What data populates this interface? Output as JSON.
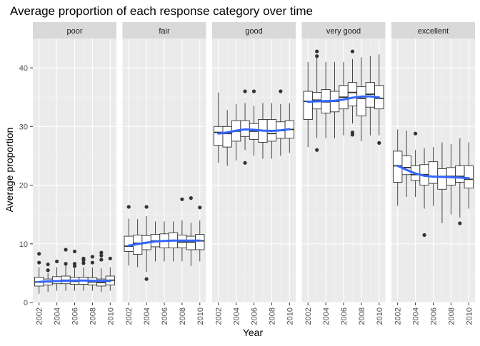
{
  "chart_data": {
    "type": "box",
    "title": "Average proportion of each response category over time",
    "xlabel": "Year",
    "ylabel": "Average proportion",
    "ylim": [
      0,
      45
    ],
    "yticks": [
      0,
      10,
      20,
      30,
      40
    ],
    "xlim": [
      2001.3,
      2010.7
    ],
    "xticks": [
      2002,
      2004,
      2006,
      2008,
      2010
    ],
    "grid": true,
    "colors": {
      "panel_bg": "#ebebeb",
      "strip_bg": "#d9d9d9",
      "grid_major": "#ffffff",
      "grid_minor": "#f4f4f4",
      "smooth": "#3366ff",
      "box_fill": "#ffffff",
      "outline": "#333333"
    },
    "facets": [
      {
        "label": "poor",
        "smooth": [
          3.5,
          3.6,
          3.65,
          3.7,
          3.75,
          3.75,
          3.7,
          3.7,
          3.65
        ],
        "boxes": [
          {
            "x": 2002,
            "stats": [
              1.5,
              2.8,
              3.5,
              4.3,
              6.0
            ],
            "outliers": [
              8.3,
              6.8
            ]
          },
          {
            "x": 2003,
            "stats": [
              1.8,
              3.0,
              3.5,
              4.0,
              5.0
            ],
            "outliers": [
              6.5,
              5.5
            ]
          },
          {
            "x": 2004,
            "stats": [
              2.0,
              3.2,
              3.7,
              4.4,
              6.0
            ],
            "outliers": [
              7.0
            ]
          },
          {
            "x": 2005,
            "stats": [
              2.0,
              3.2,
              3.8,
              4.5,
              6.3
            ],
            "outliers": [
              9.0,
              6.6
            ]
          },
          {
            "x": 2006,
            "stats": [
              2.0,
              3.1,
              3.6,
              4.3,
              5.8
            ],
            "outliers": [
              8.7,
              6.6,
              6.2
            ]
          },
          {
            "x": 2007,
            "stats": [
              2.0,
              3.1,
              3.7,
              4.3,
              6.0
            ],
            "outliers": [
              7.5,
              7.2,
              6.7
            ]
          },
          {
            "x": 2008,
            "stats": [
              2.0,
              3.0,
              3.5,
              4.2,
              6.0
            ],
            "outliers": [
              7.8,
              6.8
            ]
          },
          {
            "x": 2009,
            "stats": [
              1.8,
              2.8,
              3.4,
              4.0,
              5.8
            ],
            "outliers": [
              8.5,
              8.0,
              7.3
            ]
          },
          {
            "x": 2010,
            "stats": [
              2.0,
              3.0,
              3.8,
              4.5,
              6.0
            ],
            "outliers": [
              7.5
            ]
          }
        ]
      },
      {
        "label": "fair",
        "smooth": [
          9.7,
          9.95,
          10.2,
          10.4,
          10.5,
          10.55,
          10.55,
          10.55,
          10.55
        ],
        "boxes": [
          {
            "x": 2002,
            "stats": [
              6.3,
              8.7,
              9.6,
              11.3,
              14.3
            ],
            "outliers": [
              16.3
            ]
          },
          {
            "x": 2003,
            "stats": [
              6.0,
              8.2,
              10.1,
              11.5,
              14.2
            ],
            "outliers": []
          },
          {
            "x": 2004,
            "stats": [
              5.2,
              9.0,
              10.2,
              11.4,
              14.7
            ],
            "outliers": [
              16.3,
              4.0
            ]
          },
          {
            "x": 2005,
            "stats": [
              7.0,
              9.5,
              10.5,
              11.6,
              13.8
            ],
            "outliers": []
          },
          {
            "x": 2006,
            "stats": [
              7.0,
              9.3,
              10.5,
              11.7,
              13.8
            ],
            "outliers": []
          },
          {
            "x": 2007,
            "stats": [
              7.0,
              9.3,
              10.6,
              11.9,
              13.8
            ],
            "outliers": []
          },
          {
            "x": 2008,
            "stats": [
              7.0,
              9.3,
              10.3,
              11.5,
              14.0
            ],
            "outliers": [
              17.6
            ]
          },
          {
            "x": 2009,
            "stats": [
              6.2,
              9.0,
              10.3,
              11.3,
              13.6
            ],
            "outliers": [
              17.8
            ]
          },
          {
            "x": 2010,
            "stats": [
              7.0,
              9.0,
              10.5,
              11.6,
              14.0
            ],
            "outliers": [
              16.2
            ]
          }
        ]
      },
      {
        "label": "good",
        "smooth": [
          28.8,
          29.0,
          29.3,
          29.5,
          29.45,
          29.3,
          29.25,
          29.35,
          29.55
        ],
        "boxes": [
          {
            "x": 2002,
            "stats": [
              23.8,
              26.8,
              29.0,
              30.0,
              35.8
            ],
            "outliers": []
          },
          {
            "x": 2003,
            "stats": [
              23.3,
              26.5,
              28.8,
              30.0,
              32.8
            ],
            "outliers": []
          },
          {
            "x": 2004,
            "stats": [
              24.2,
              27.5,
              29.2,
              31.0,
              33.8
            ],
            "outliers": []
          },
          {
            "x": 2005,
            "stats": [
              26.0,
              28.3,
              29.5,
              31.0,
              34.0
            ],
            "outliers": [
              36.0,
              23.8
            ]
          },
          {
            "x": 2006,
            "stats": [
              25.0,
              27.8,
              29.2,
              30.5,
              33.5
            ],
            "outliers": [
              36.0
            ]
          },
          {
            "x": 2007,
            "stats": [
              24.5,
              27.3,
              29.3,
              31.2,
              34.0
            ],
            "outliers": []
          },
          {
            "x": 2008,
            "stats": [
              24.5,
              27.5,
              28.8,
              31.2,
              34.0
            ],
            "outliers": []
          },
          {
            "x": 2009,
            "stats": [
              25.0,
              28.0,
              29.3,
              30.8,
              33.8
            ],
            "outliers": [
              36.0
            ]
          },
          {
            "x": 2010,
            "stats": [
              25.5,
              28.0,
              29.5,
              31.0,
              34.0
            ],
            "outliers": []
          }
        ]
      },
      {
        "label": "very good",
        "smooth": [
          34.2,
          34.3,
          34.35,
          34.4,
          34.6,
          34.9,
          35.1,
          35.15,
          34.95
        ],
        "boxes": [
          {
            "x": 2002,
            "stats": [
              26.5,
              31.2,
              34.3,
              36.0,
              41.0
            ],
            "outliers": []
          },
          {
            "x": 2003,
            "stats": [
              28.0,
              33.0,
              34.5,
              35.8,
              41.8
            ],
            "outliers": [
              42.8,
              42.0,
              26.0
            ]
          },
          {
            "x": 2004,
            "stats": [
              28.0,
              32.3,
              34.2,
              36.3,
              41.0
            ],
            "outliers": []
          },
          {
            "x": 2005,
            "stats": [
              28.0,
              32.5,
              34.3,
              36.0,
              41.0
            ],
            "outliers": []
          },
          {
            "x": 2006,
            "stats": [
              28.5,
              33.0,
              35.0,
              37.0,
              41.0
            ],
            "outliers": []
          },
          {
            "x": 2007,
            "stats": [
              30.5,
              33.5,
              35.8,
              37.5,
              41.5
            ],
            "outliers": [
              42.8,
              29.0,
              28.6
            ]
          },
          {
            "x": 2008,
            "stats": [
              27.5,
              31.8,
              34.8,
              36.8,
              41.8
            ],
            "outliers": []
          },
          {
            "x": 2009,
            "stats": [
              28.5,
              33.3,
              35.5,
              37.5,
              42.0
            ],
            "outliers": []
          },
          {
            "x": 2010,
            "stats": [
              28.5,
              33.0,
              34.8,
              37.0,
              42.3
            ],
            "outliers": [
              27.2
            ]
          }
        ]
      },
      {
        "label": "excellent",
        "smooth": [
          23.3,
          22.6,
          22.0,
          21.6,
          21.45,
          21.4,
          21.35,
          21.3,
          21.2
        ],
        "boxes": [
          {
            "x": 2002,
            "stats": [
              16.5,
              20.5,
              23.3,
              25.8,
              29.5
            ],
            "outliers": []
          },
          {
            "x": 2003,
            "stats": [
              18.0,
              21.8,
              23.0,
              25.0,
              29.3
            ],
            "outliers": []
          },
          {
            "x": 2004,
            "stats": [
              18.0,
              20.8,
              21.8,
              23.3,
              26.0
            ],
            "outliers": [
              28.8
            ]
          },
          {
            "x": 2005,
            "stats": [
              16.0,
              20.0,
              21.8,
              23.5,
              26.3
            ],
            "outliers": [
              11.5
            ]
          },
          {
            "x": 2006,
            "stats": [
              16.5,
              20.3,
              21.5,
              24.0,
              26.5
            ],
            "outliers": []
          },
          {
            "x": 2007,
            "stats": [
              13.5,
              19.3,
              21.5,
              22.8,
              27.3
            ],
            "outliers": []
          },
          {
            "x": 2008,
            "stats": [
              15.0,
              20.0,
              21.5,
              23.0,
              27.0
            ],
            "outliers": []
          },
          {
            "x": 2009,
            "stats": [
              14.5,
              20.5,
              21.5,
              23.3,
              28.0
            ],
            "outliers": [
              13.5
            ]
          },
          {
            "x": 2010,
            "stats": [
              16.0,
              19.5,
              21.0,
              23.3,
              27.3
            ],
            "outliers": []
          }
        ]
      }
    ]
  }
}
